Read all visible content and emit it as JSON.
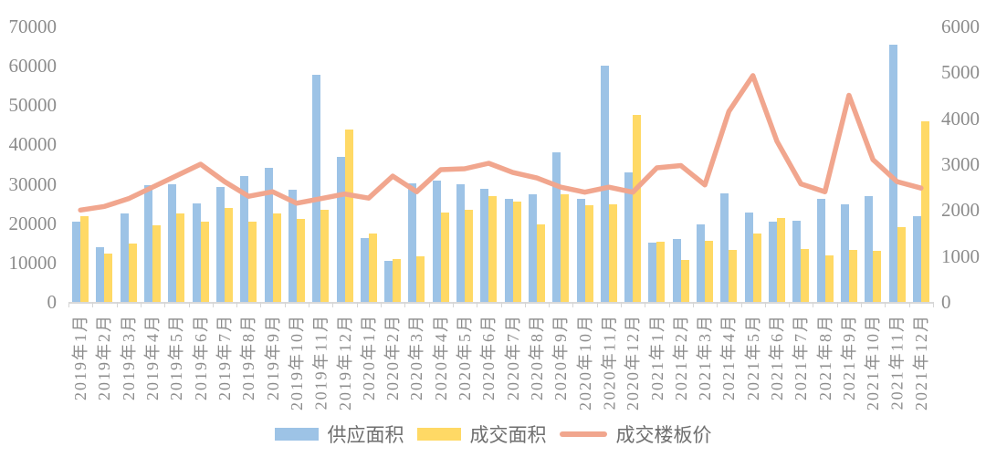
{
  "chart_data": {
    "type": "combo-bar-line",
    "title": "",
    "categories": [
      "2019年1月",
      "2019年2月",
      "2019年3月",
      "2019年4月",
      "2019年5月",
      "2019年6月",
      "2019年7月",
      "2019年8月",
      "2019年9月",
      "2019年10月",
      "2019年11月",
      "2019年12月",
      "2020年1月",
      "2020年2月",
      "2020年3月",
      "2020年4月",
      "2020年5月",
      "2020年6月",
      "2020年7月",
      "2020年8月",
      "2020年9月",
      "2020年10月",
      "2020年11月",
      "2020年12月",
      "2021年1月",
      "2021年2月",
      "2021年3月",
      "2021年4月",
      "2021年5月",
      "2021年6月",
      "2021年7月",
      "2021年8月",
      "2021年9月",
      "2021年10月",
      "2021年11月",
      "2021年12月"
    ],
    "series": [
      {
        "name": "供应面积",
        "type": "bar",
        "axis": "left",
        "color": "#9DC3E6",
        "values": [
          20500,
          13800,
          22500,
          29700,
          29800,
          25000,
          29200,
          32100,
          34000,
          28500,
          57600,
          36800,
          16300,
          10500,
          30100,
          30800,
          29800,
          28700,
          26300,
          27300,
          38100,
          26300,
          60000,
          33000,
          15100,
          16100,
          19700,
          27600,
          22800,
          20300,
          20700,
          26200,
          24800,
          26800,
          65300,
          21800
        ]
      },
      {
        "name": "成交面积",
        "type": "bar",
        "axis": "left",
        "color": "#FFD965",
        "values": [
          21700,
          12300,
          14900,
          19400,
          22400,
          20300,
          23800,
          20400,
          22500,
          21200,
          23500,
          43700,
          17400,
          10800,
          11700,
          22600,
          23300,
          26900,
          25400,
          19700,
          27300,
          24600,
          24700,
          47600,
          15400,
          10700,
          15500,
          13200,
          17300,
          21300,
          13500,
          11800,
          13100,
          13000,
          19000,
          46000
        ]
      },
      {
        "name": "成交楼板价",
        "type": "line",
        "axis": "right",
        "color": "#F1A68E",
        "values": [
          2000,
          2080,
          2250,
          2500,
          2750,
          3000,
          2620,
          2300,
          2400,
          2150,
          2250,
          2350,
          2260,
          2740,
          2400,
          2880,
          2900,
          3020,
          2820,
          2700,
          2500,
          2390,
          2500,
          2390,
          2920,
          2970,
          2550,
          4150,
          4930,
          3500,
          2570,
          2400,
          4500,
          3100,
          2620,
          2480
        ]
      }
    ],
    "y_left": {
      "min": 0,
      "max": 70000,
      "step": 10000,
      "tick_labels": [
        "0",
        "10000",
        "20000",
        "30000",
        "40000",
        "50000",
        "60000",
        "70000"
      ]
    },
    "y_right": {
      "min": 0,
      "max": 6000,
      "step": 1000,
      "tick_labels": [
        "0",
        "1000",
        "2000",
        "3000",
        "4000",
        "5000",
        "6000"
      ]
    },
    "legend_position": "bottom",
    "grid": false,
    "axis_text_color": "#8c8c8c"
  },
  "legend": {
    "items": [
      {
        "label": "供应面积",
        "shape": "rect",
        "color": "#9DC3E6"
      },
      {
        "label": "成交面积",
        "shape": "rect",
        "color": "#FFD965"
      },
      {
        "label": "成交楼板价",
        "shape": "line",
        "color": "#F1A68E"
      }
    ]
  }
}
